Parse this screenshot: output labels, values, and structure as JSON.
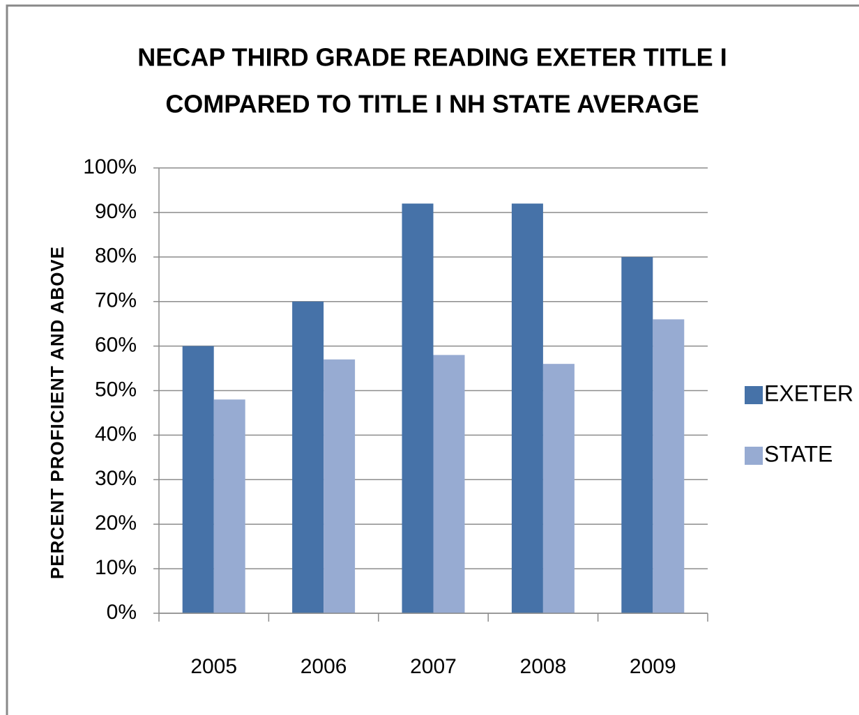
{
  "chart_data": {
    "type": "bar",
    "title": [
      "NECAP THIRD GRADE READING EXETER TITLE I",
      "COMPARED TO TITLE I NH STATE AVERAGE"
    ],
    "y_label": "PERCENT PROFICIENT AND ABOVE",
    "categories": [
      "2005",
      "2006",
      "2007",
      "2008",
      "2009"
    ],
    "series": [
      {
        "name": "EXETER",
        "color": "#4672a8",
        "values": [
          60,
          70,
          92,
          92,
          80
        ]
      },
      {
        "name": "STATE",
        "color": "#97abd2",
        "values": [
          48,
          57,
          58,
          56,
          66
        ]
      }
    ],
    "ylim": [
      0,
      100
    ],
    "yticks": [
      {
        "value": 0,
        "label": "0%"
      },
      {
        "value": 10,
        "label": "10%"
      },
      {
        "value": 20,
        "label": "20%"
      },
      {
        "value": 30,
        "label": "30%"
      },
      {
        "value": 40,
        "label": "40%"
      },
      {
        "value": 50,
        "label": "50%"
      },
      {
        "value": 60,
        "label": "60%"
      },
      {
        "value": 70,
        "label": "70%"
      },
      {
        "value": 80,
        "label": "80%"
      },
      {
        "value": 90,
        "label": "90%"
      },
      {
        "value": 100,
        "label": "100%"
      }
    ],
    "grid": true,
    "legend": "right"
  }
}
